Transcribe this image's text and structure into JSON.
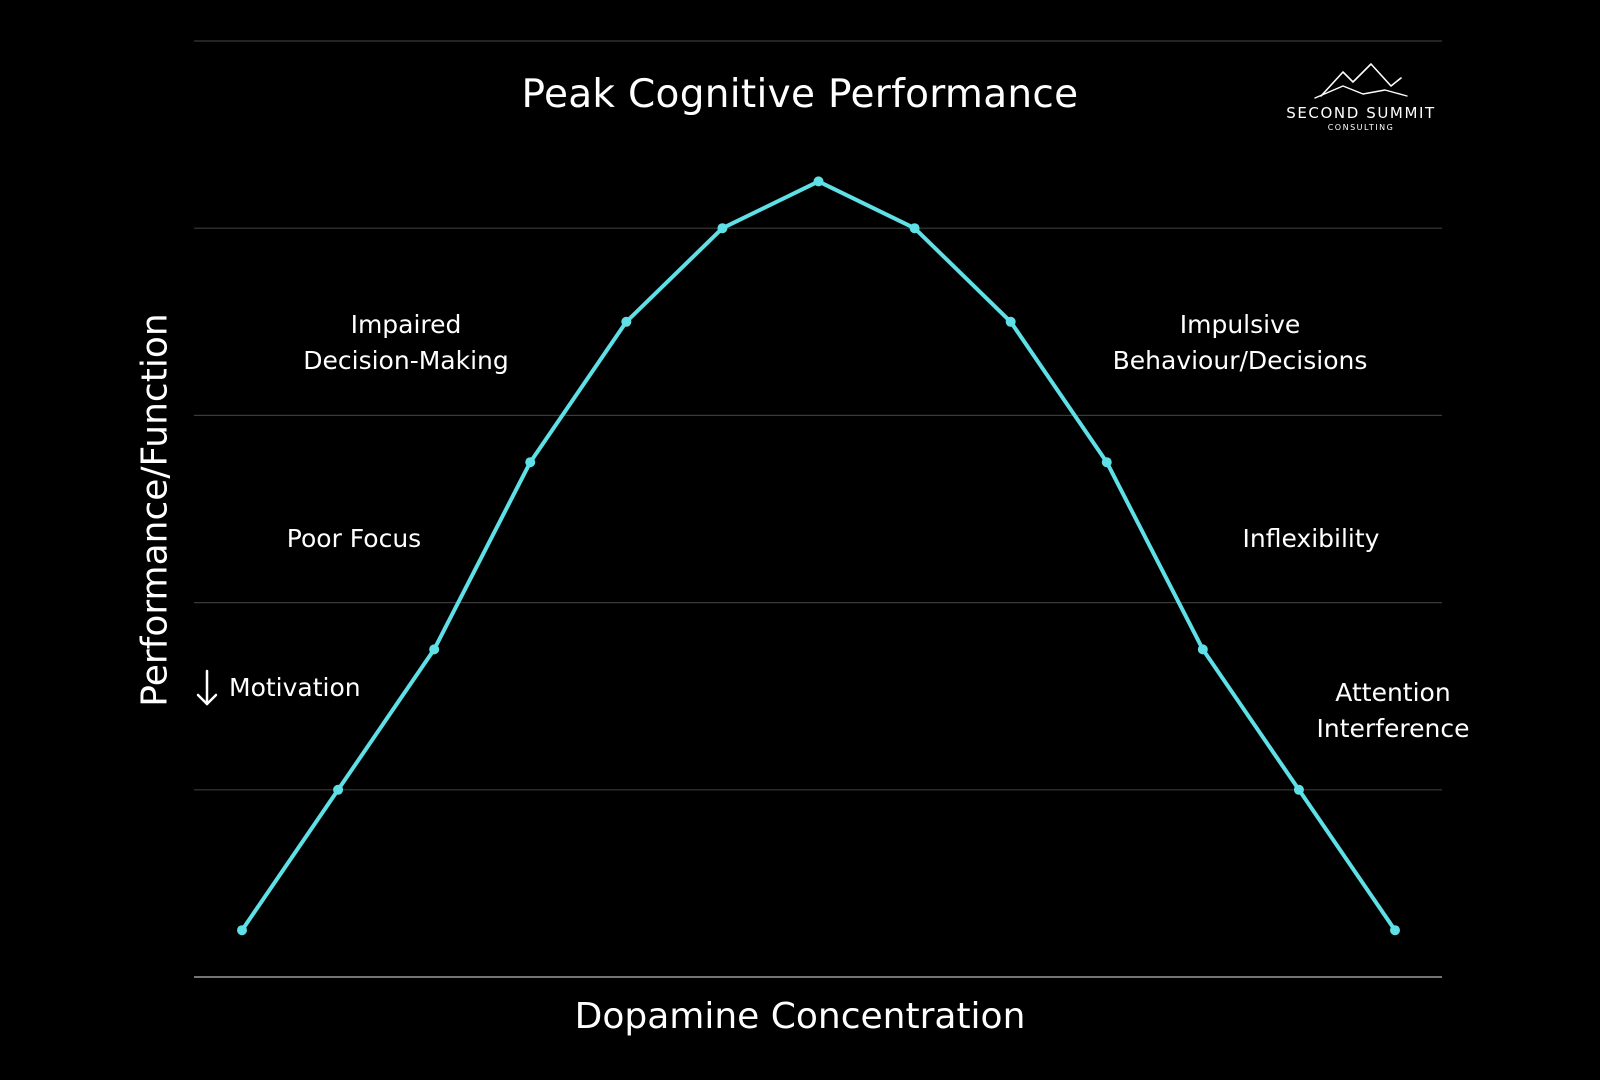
{
  "chart_data": {
    "type": "line",
    "title": "Peak Cognitive Performance",
    "xlabel": "Dopamine Concentration",
    "ylabel": "Performance/Function",
    "x_ticks_shown": false,
    "y_ticks_shown": false,
    "grid": true,
    "legend": "none",
    "ylim": [
      0,
      5
    ],
    "x": [
      0,
      1,
      2,
      3,
      4,
      5,
      6,
      7,
      8,
      9,
      10,
      11,
      12
    ],
    "series": [
      {
        "values": [
          0.25,
          1.0,
          1.75,
          2.75,
          3.5,
          4.0,
          4.25,
          4.0,
          3.5,
          2.75,
          1.75,
          1.0,
          0.25
        ],
        "color": "#5ee0e6"
      }
    ],
    "line_color": "#5ee0e6",
    "grid_color": "#3a3a3a",
    "background": "#000000"
  },
  "annotations": {
    "impaired_line1": "Impaired",
    "impaired_line2": "Decision-Making",
    "poor_focus": "Poor Focus",
    "motivation": "Motivation",
    "impulsive_line1": "Impulsive",
    "impulsive_line2": "Behaviour/Decisions",
    "inflexibility": "Inflexibility",
    "attention_line1": "Attention",
    "attention_line2": "Interference"
  },
  "logo": {
    "name": "SECOND SUMMIT",
    "subtitle": "CONSULTING",
    "icon": "mountain-peaks-icon"
  }
}
